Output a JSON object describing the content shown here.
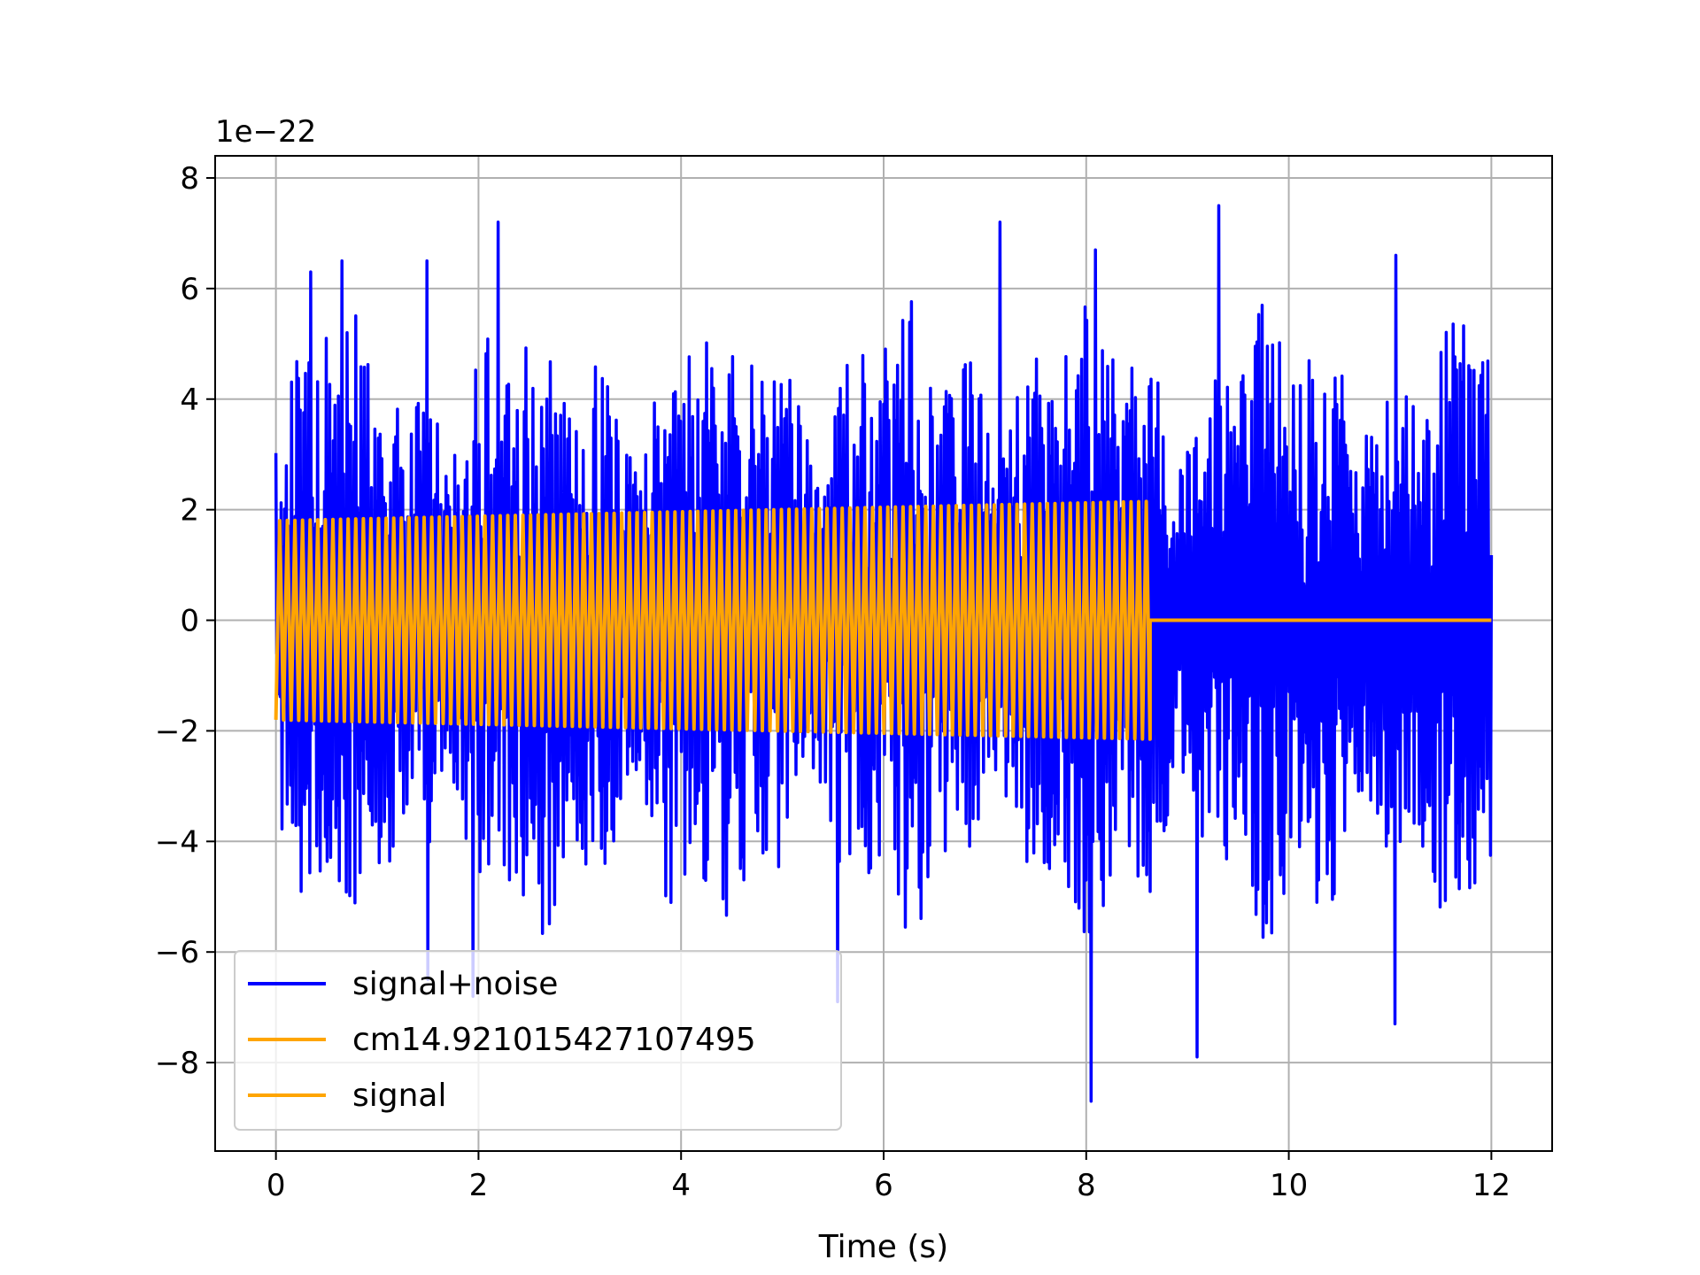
{
  "chart_data": {
    "type": "line",
    "xlabel": "Time (s)",
    "ylabel": "",
    "offset_text": "1e−22",
    "xlim": [
      -0.6,
      12.6
    ],
    "ylim": [
      -9.6,
      8.4
    ],
    "xticks": [
      0,
      2,
      4,
      6,
      8,
      10,
      12
    ],
    "yticks": [
      8,
      6,
      4,
      2,
      0,
      -2,
      -4,
      -6,
      -8
    ],
    "xtick_labels": [
      "0",
      "2",
      "4",
      "6",
      "8",
      "10",
      "12"
    ],
    "ytick_labels": [
      "8",
      "6",
      "4",
      "2",
      "0",
      "−2",
      "−4",
      "−6",
      "−8"
    ],
    "grid": true,
    "legend_position": "lower-left",
    "series": [
      {
        "name": "signal+noise",
        "color": "#0000ff",
        "description_note": "noisy oscillation spanning 0–12 s, amplitude mostly within ±5, extremes",
        "x_range": [
          0,
          12
        ],
        "peaks": [
          {
            "x": 0.35,
            "y": 6.3
          },
          {
            "x": 0.65,
            "y": 6.5
          },
          {
            "x": 1.5,
            "y": 6.5
          },
          {
            "x": 2.2,
            "y": 7.2
          },
          {
            "x": 7.15,
            "y": 7.2
          },
          {
            "x": 8.1,
            "y": 6.7
          },
          {
            "x": 9.3,
            "y": 7.5
          },
          {
            "x": 11.05,
            "y": 6.6
          }
        ],
        "troughs": [
          {
            "x": 1.5,
            "y": -6.5
          },
          {
            "x": 1.95,
            "y": -6.8
          },
          {
            "x": 5.55,
            "y": -6.9
          },
          {
            "x": 8.05,
            "y": -8.7
          },
          {
            "x": 9.1,
            "y": -7.9
          },
          {
            "x": 11.05,
            "y": -7.3
          }
        ]
      },
      {
        "name": "cm14.921015427107495",
        "color": "#ffa500",
        "x_range": [
          0,
          12
        ],
        "note": "same as signal"
      },
      {
        "name": "signal",
        "color": "#ffa500",
        "x_range": [
          0,
          12
        ],
        "segments": [
          {
            "x_start": 0,
            "x_end": 8.63,
            "amplitude_start": 1.8,
            "amplitude_end": 2.15,
            "cycles": 115
          },
          {
            "x_start": 8.63,
            "x_end": 12,
            "amplitude": 0
          }
        ]
      }
    ]
  }
}
